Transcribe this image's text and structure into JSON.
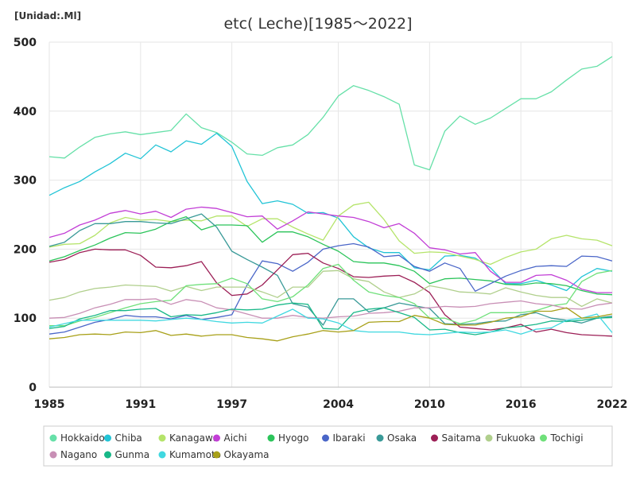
{
  "chart_data": {
    "type": "line",
    "title": "etc( Leche)[1985～2022]",
    "unit_label": "[Unidad:.Ml]",
    "xlabel": "",
    "ylabel": "",
    "xlim": [
      1985,
      2022
    ],
    "ylim": [
      0,
      500
    ],
    "x_ticks": [
      1985,
      1991,
      1997,
      2004,
      2010,
      2016,
      2022
    ],
    "y_ticks": [
      0,
      100,
      200,
      300,
      400,
      500
    ],
    "grid": true,
    "legend_position": "bottom",
    "x": [
      1985,
      1986,
      1987,
      1988,
      1989,
      1990,
      1991,
      1992,
      1993,
      1994,
      1995,
      1996,
      1997,
      1998,
      1999,
      2000,
      2001,
      2002,
      2003,
      2004,
      2005,
      2006,
      2007,
      2008,
      2009,
      2010,
      2011,
      2012,
      2013,
      2014,
      2015,
      2016,
      2017,
      2018,
      2019,
      2020,
      2021,
      2022
    ],
    "series": [
      {
        "name": "Hokkaido",
        "color": "#66e0a8",
        "values": [
          334,
          332,
          348,
          362,
          367,
          370,
          366,
          369,
          372,
          396,
          376,
          369,
          355,
          338,
          336,
          347,
          351,
          366,
          391,
          422,
          437,
          430,
          421,
          410,
          322,
          315,
          371,
          393,
          381,
          390,
          404,
          418,
          418,
          428,
          445,
          461,
          465,
          479
        ]
      },
      {
        "name": "Chiba",
        "color": "#22c4d6",
        "values": [
          278,
          289,
          298,
          312,
          324,
          339,
          331,
          351,
          341,
          357,
          352,
          368,
          349,
          298,
          266,
          270,
          265,
          252,
          253,
          245,
          218,
          202,
          195,
          195,
          173,
          170,
          190,
          191,
          187,
          173,
          150,
          150,
          155,
          148,
          140,
          160,
          172,
          168
        ]
      },
      {
        "name": "Kanagawa",
        "color": "#b5e46a",
        "values": [
          203,
          207,
          208,
          220,
          238,
          246,
          242,
          243,
          240,
          242,
          241,
          248,
          248,
          233,
          244,
          244,
          232,
          222,
          213,
          248,
          264,
          268,
          243,
          212,
          194,
          196,
          195,
          190,
          185,
          178,
          188,
          196,
          200,
          215,
          220,
          215,
          213,
          205
        ]
      },
      {
        "name": "Aichi",
        "color": "#c23ed6",
        "values": [
          217,
          223,
          235,
          242,
          252,
          256,
          251,
          255,
          246,
          258,
          261,
          259,
          253,
          247,
          248,
          229,
          241,
          254,
          251,
          248,
          246,
          240,
          231,
          237,
          223,
          202,
          199,
          193,
          195,
          168,
          152,
          152,
          162,
          163,
          155,
          142,
          137,
          137
        ]
      },
      {
        "name": "Hyogo",
        "color": "#2bc45a",
        "values": [
          183,
          189,
          198,
          206,
          216,
          224,
          223,
          229,
          240,
          247,
          228,
          235,
          235,
          234,
          210,
          225,
          225,
          218,
          207,
          197,
          182,
          180,
          180,
          176,
          168,
          150,
          157,
          158,
          156,
          154,
          149,
          148,
          151,
          150,
          147,
          140,
          135,
          134
        ]
      },
      {
        "name": "Ibaraki",
        "color": "#4a66c8",
        "values": [
          77,
          80,
          87,
          94,
          98,
          104,
          102,
          102,
          99,
          104,
          98,
          101,
          105,
          148,
          183,
          179,
          168,
          181,
          200,
          205,
          208,
          203,
          189,
          191,
          175,
          168,
          180,
          172,
          139,
          150,
          161,
          169,
          175,
          176,
          175,
          190,
          189,
          183
        ]
      },
      {
        "name": "Osaka",
        "color": "#3a9a98",
        "values": [
          204,
          210,
          227,
          237,
          237,
          240,
          240,
          238,
          237,
          244,
          251,
          232,
          197,
          185,
          174,
          162,
          121,
          116,
          90,
          128,
          128,
          109,
          115,
          122,
          118,
          114,
          92,
          91,
          92,
          95,
          96,
          105,
          108,
          100,
          97,
          93,
          100,
          103
        ]
      },
      {
        "name": "Saitama",
        "color": "#9c1f56",
        "values": [
          181,
          185,
          195,
          200,
          199,
          199,
          191,
          174,
          173,
          176,
          182,
          151,
          133,
          135,
          148,
          170,
          192,
          194,
          180,
          172,
          160,
          159,
          161,
          162,
          152,
          137,
          105,
          87,
          85,
          83,
          86,
          91,
          80,
          84,
          79,
          76,
          75,
          74
        ]
      },
      {
        "name": "Fukuoka",
        "color": "#b0cf8c",
        "values": [
          126,
          130,
          138,
          143,
          145,
          148,
          147,
          146,
          139,
          146,
          140,
          145,
          145,
          145,
          138,
          130,
          145,
          145,
          168,
          169,
          157,
          153,
          138,
          130,
          135,
          147,
          143,
          138,
          137,
          135,
          144,
          138,
          133,
          130,
          130,
          117,
          128,
          122
        ]
      },
      {
        "name": "Tochigi",
        "color": "#6fe07a",
        "values": [
          89,
          89,
          96,
          101,
          108,
          115,
          121,
          124,
          126,
          147,
          149,
          150,
          158,
          150,
          128,
          124,
          131,
          148,
          172,
          178,
          155,
          138,
          133,
          130,
          121,
          100,
          100,
          92,
          97,
          108,
          108,
          108,
          111,
          118,
          121,
          153,
          165,
          169
        ]
      },
      {
        "name": "Nagano",
        "color": "#c88fb5",
        "values": [
          100,
          101,
          107,
          115,
          120,
          127,
          127,
          128,
          120,
          127,
          124,
          115,
          112,
          106,
          100,
          100,
          104,
          101,
          100,
          102,
          103,
          107,
          108,
          110,
          115,
          115,
          117,
          116,
          117,
          121,
          123,
          125,
          121,
          119,
          114,
          113,
          119,
          122
        ]
      },
      {
        "name": "Gunma",
        "color": "#18b888",
        "values": [
          85,
          88,
          99,
          104,
          111,
          111,
          113,
          114,
          102,
          105,
          104,
          108,
          113,
          112,
          113,
          119,
          122,
          120,
          85,
          84,
          108,
          113,
          115,
          108,
          101,
          83,
          84,
          79,
          76,
          80,
          86,
          88,
          91,
          96,
          95,
          97,
          100,
          101
        ]
      },
      {
        "name": "Kumamoto",
        "color": "#40d8e0",
        "values": [
          87,
          92,
          97,
          97,
          97,
          97,
          97,
          96,
          98,
          100,
          98,
          95,
          93,
          94,
          93,
          103,
          113,
          100,
          99,
          93,
          82,
          80,
          80,
          80,
          77,
          76,
          78,
          80,
          79,
          80,
          83,
          77,
          84,
          86,
          97,
          100,
          106,
          79
        ]
      },
      {
        "name": "Okayama",
        "color": "#a8a018",
        "values": [
          70,
          72,
          76,
          77,
          76,
          80,
          79,
          82,
          75,
          77,
          74,
          76,
          76,
          72,
          70,
          67,
          73,
          77,
          82,
          80,
          82,
          94,
          95,
          95,
          104,
          100,
          91,
          90,
          90,
          94,
          100,
          102,
          110,
          110,
          115,
          100,
          102,
          106
        ]
      }
    ]
  }
}
